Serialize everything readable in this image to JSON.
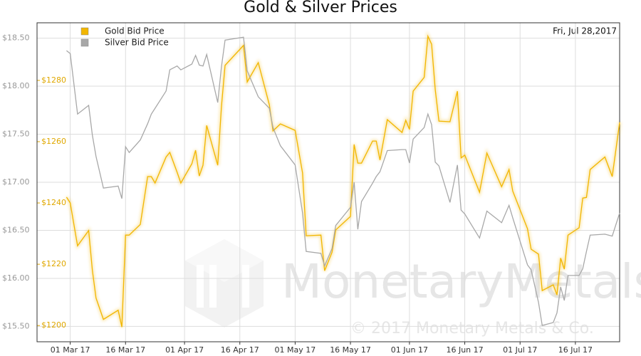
{
  "chart_data": {
    "type": "line",
    "title": "Gold & Silver Prices",
    "date_label": "Fri, Jul 28,2017",
    "watermark": "MonetaryMetals",
    "copyright": "© 2017 Monetary Metals & Co.",
    "x": [
      "2017-02-28",
      "2017-03-01",
      "2017-03-03",
      "2017-03-06",
      "2017-03-07",
      "2017-03-08",
      "2017-03-10",
      "2017-03-14",
      "2017-03-15",
      "2017-03-16",
      "2017-03-17",
      "2017-03-20",
      "2017-03-22",
      "2017-03-23",
      "2017-03-24",
      "2017-03-27",
      "2017-03-28",
      "2017-03-30",
      "2017-03-31",
      "2017-04-03",
      "2017-04-04",
      "2017-04-05",
      "2017-04-06",
      "2017-04-07",
      "2017-04-10",
      "2017-04-11",
      "2017-04-12",
      "2017-04-17",
      "2017-04-18",
      "2017-04-21",
      "2017-04-24",
      "2017-04-25",
      "2017-04-27",
      "2017-05-01",
      "2017-05-03",
      "2017-05-04",
      "2017-05-08",
      "2017-05-09",
      "2017-05-11",
      "2017-05-12",
      "2017-05-16",
      "2017-05-17",
      "2017-05-18",
      "2017-05-19",
      "2017-05-22",
      "2017-05-23",
      "2017-05-24",
      "2017-05-26",
      "2017-05-30",
      "2017-05-31",
      "2017-06-01",
      "2017-06-02",
      "2017-06-05",
      "2017-06-06",
      "2017-06-07",
      "2017-06-08",
      "2017-06-09",
      "2017-06-12",
      "2017-06-14",
      "2017-06-15",
      "2017-06-16",
      "2017-06-20",
      "2017-06-22",
      "2017-06-26",
      "2017-06-28",
      "2017-06-29",
      "2017-07-03",
      "2017-07-04",
      "2017-07-06",
      "2017-07-07",
      "2017-07-10",
      "2017-07-11",
      "2017-07-12",
      "2017-07-13",
      "2017-07-14",
      "2017-07-17",
      "2017-07-18",
      "2017-07-19",
      "2017-07-20",
      "2017-07-24",
      "2017-07-26",
      "2017-07-28"
    ],
    "xlim": [
      "2017-02-20",
      "2017-07-28"
    ],
    "xticks": [
      {
        "value": "2017-03-01",
        "label": "01 Mar 17"
      },
      {
        "value": "2017-03-16",
        "label": "16 Mar 17"
      },
      {
        "value": "2017-04-01",
        "label": "01 Apr 17"
      },
      {
        "value": "2017-04-16",
        "label": "16 Apr 17"
      },
      {
        "value": "2017-05-01",
        "label": "01 May 17"
      },
      {
        "value": "2017-05-16",
        "label": "16 May 17"
      },
      {
        "value": "2017-06-01",
        "label": "01 Jun 17"
      },
      {
        "value": "2017-06-16",
        "label": "16 Jun 17"
      },
      {
        "value": "2017-07-01",
        "label": "01 Jul 17"
      },
      {
        "value": "2017-07-16",
        "label": "16 Jul 17"
      }
    ],
    "ylim": [
      15.34,
      18.66
    ],
    "yticks": [
      {
        "value": 15.5,
        "label": "$15.50"
      },
      {
        "value": 16,
        "label": "$16.00"
      },
      {
        "value": 16.5,
        "label": "$16.50"
      },
      {
        "value": 17,
        "label": "$17.00"
      },
      {
        "value": 17.5,
        "label": "$17.50"
      },
      {
        "value": 18,
        "label": "$18.00"
      },
      {
        "value": 18.5,
        "label": "$18.50"
      }
    ],
    "y2lim": [
      1194.7,
      1298.8
    ],
    "y2ticks": [
      {
        "value": 1200,
        "label": "$1200"
      },
      {
        "value": 1220,
        "label": "$1220"
      },
      {
        "value": 1240,
        "label": "$1240"
      },
      {
        "value": 1260,
        "label": "$1260"
      },
      {
        "value": 1280,
        "label": "$1280"
      }
    ],
    "grid": true,
    "legend": "top-left",
    "series": [
      {
        "name": "Gold Bid Price",
        "color": "#f2b600",
        "axis": "y2",
        "values": [
          1241.9,
          1240,
          1226,
          1231,
          1218,
          1209,
          1202,
          1205,
          1199.5,
          1229.5,
          1229.5,
          1233,
          1248.6,
          1248.6,
          1246.5,
          1255,
          1256.5,
          1250,
          1246.5,
          1252.8,
          1257.2,
          1248.8,
          1252.3,
          1265.3,
          1252.3,
          1271.4,
          1284.9,
          1291.4,
          1279.5,
          1285.8,
          1272,
          1263.5,
          1265.8,
          1263.7,
          1249.8,
          1229.3,
          1229.5,
          1217.9,
          1223.9,
          1231.2,
          1235.6,
          1259.1,
          1253,
          1253,
          1260.2,
          1260.2,
          1254,
          1267.2,
          1263,
          1267,
          1264,
          1276.5,
          1281,
          1294.4,
          1291.8,
          1277,
          1266.7,
          1266.5,
          1276.5,
          1254.7,
          1255.6,
          1243.5,
          1256.3,
          1245.3,
          1250.9,
          1243.9,
          1231.6,
          1224.9,
          1223.3,
          1211.4,
          1213.3,
          1210,
          1222,
          1218.4,
          1229.5,
          1231.9,
          1241.6,
          1241.8,
          1250.9,
          1255,
          1248.6,
          1266.3
        ]
      },
      {
        "name": "Silver Bid Price",
        "color": "#a8a8a8",
        "values": [
          18.37,
          18.34,
          17.71,
          17.8,
          17.49,
          17.27,
          16.94,
          16.96,
          16.83,
          17.37,
          17.31,
          17.44,
          17.61,
          17.71,
          17.77,
          17.95,
          18.17,
          18.21,
          18.17,
          18.23,
          18.32,
          18.22,
          18.21,
          18.33,
          17.83,
          18.2,
          18.48,
          18.51,
          18.16,
          17.89,
          17.77,
          17.57,
          17.38,
          17.18,
          16.68,
          16.28,
          16.26,
          16.13,
          16.31,
          16.55,
          16.74,
          17,
          16.51,
          16.8,
          16.99,
          17.06,
          17.11,
          17.33,
          17.34,
          17.34,
          17.2,
          17.45,
          17.57,
          17.71,
          17.6,
          17.21,
          17.17,
          16.79,
          17.18,
          16.71,
          16.67,
          16.42,
          16.7,
          16.58,
          16.76,
          16.63,
          16.14,
          16.09,
          15.75,
          15.51,
          15.54,
          15.64,
          15.91,
          15.77,
          16.03,
          16.03,
          16.1,
          16.28,
          16.45,
          16.46,
          16.44,
          16.68
        ]
      }
    ]
  }
}
